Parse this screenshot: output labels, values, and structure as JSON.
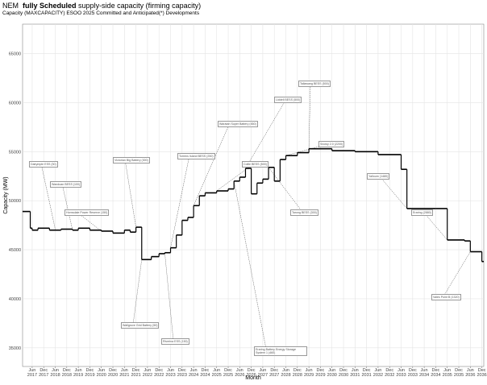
{
  "chart_data": {
    "type": "step",
    "title_prefix": "NEM",
    "title_bold": "fully Scheduled",
    "title_suffix": "supply-side capacity (firming capacity)",
    "subtitle": "Capacity (MAXCAPACITY) ESOO 2025 Committed and Anticipated(*) Developments",
    "x_label": "Month",
    "y_label": "Capacity (MW)",
    "color": "#000000",
    "grid": true,
    "ylim": [
      33100,
      68000
    ],
    "yticks": [
      35000,
      40000,
      45000,
      50000,
      55000,
      60000,
      65000
    ],
    "xlim": [
      "2017-01",
      "2037-01"
    ],
    "xticks": [
      {
        "value": "2017-06",
        "label": "Jun 2017"
      },
      {
        "value": "2017-12",
        "label": "Dec 2017"
      },
      {
        "value": "2018-06",
        "label": "Jun 2018"
      },
      {
        "value": "2018-12",
        "label": "Dec 2018"
      },
      {
        "value": "2019-06",
        "label": "Jun 2019"
      },
      {
        "value": "2019-12",
        "label": "Dec 2019"
      },
      {
        "value": "2020-06",
        "label": "Jun 2020"
      },
      {
        "value": "2020-12",
        "label": "Dec 2020"
      },
      {
        "value": "2021-06",
        "label": "Jun 2021"
      },
      {
        "value": "2021-12",
        "label": "Dec 2021"
      },
      {
        "value": "2022-06",
        "label": "Jun 2022"
      },
      {
        "value": "2022-12",
        "label": "Dec 2022"
      },
      {
        "value": "2023-06",
        "label": "Jun 2023"
      },
      {
        "value": "2023-12",
        "label": "Dec 2023"
      },
      {
        "value": "2024-06",
        "label": "Jun 2024"
      },
      {
        "value": "2024-12",
        "label": "Dec 2024"
      },
      {
        "value": "2025-06",
        "label": "Jun 2025"
      },
      {
        "value": "2025-12",
        "label": "Dec 2025"
      },
      {
        "value": "2026-06",
        "label": "Jun 2026"
      },
      {
        "value": "2026-12",
        "label": "Dec 2026"
      },
      {
        "value": "2027-06",
        "label": "Jun 2027"
      },
      {
        "value": "2027-12",
        "label": "Dec 2027"
      },
      {
        "value": "2028-06",
        "label": "Jun 2028"
      },
      {
        "value": "2028-12",
        "label": "Dec 2028"
      },
      {
        "value": "2029-06",
        "label": "Jun 2029"
      },
      {
        "value": "2029-12",
        "label": "Dec 2029"
      },
      {
        "value": "2030-06",
        "label": "Jun 2030"
      },
      {
        "value": "2030-12",
        "label": "Dec 2030"
      },
      {
        "value": "2031-06",
        "label": "Jun 2031"
      },
      {
        "value": "2031-12",
        "label": "Dec 2031"
      },
      {
        "value": "2032-06",
        "label": "Jun 2032"
      },
      {
        "value": "2032-12",
        "label": "Dec 2032"
      },
      {
        "value": "2033-06",
        "label": "Jun 2033"
      },
      {
        "value": "2033-12",
        "label": "Dec 2033"
      },
      {
        "value": "2034-06",
        "label": "Jun 2034"
      },
      {
        "value": "2034-12",
        "label": "Dec 2034"
      },
      {
        "value": "2035-06",
        "label": "Jun 2035"
      },
      {
        "value": "2035-12",
        "label": "Dec 2035"
      },
      {
        "value": "2036-06",
        "label": "Jun 2036"
      },
      {
        "value": "2036-12",
        "label": "Dec 2036"
      }
    ],
    "x": [
      "2017-01",
      "2017-05",
      "2017-06",
      "2017-09",
      "2018-03",
      "2018-09",
      "2019-03",
      "2019-06",
      "2019-12",
      "2020-06",
      "2020-12",
      "2021-06",
      "2021-09",
      "2021-12",
      "2022-03",
      "2022-08",
      "2022-12",
      "2023-03",
      "2023-06",
      "2023-09",
      "2023-12",
      "2024-03",
      "2024-06",
      "2024-09",
      "2024-12",
      "2025-06",
      "2025-12",
      "2026-03",
      "2026-06",
      "2026-09",
      "2026-12",
      "2027-03",
      "2027-06",
      "2027-09",
      "2027-12",
      "2028-03",
      "2028-06",
      "2028-12",
      "2029-06",
      "2030-06",
      "2031-06",
      "2032-06",
      "2033-06",
      "2033-09",
      "2034-12",
      "2035-06",
      "2036-03",
      "2036-06",
      "2036-12"
    ],
    "values": [
      48900,
      47200,
      47000,
      47200,
      47000,
      47100,
      47000,
      47200,
      47000,
      46900,
      46700,
      47000,
      46800,
      47300,
      44000,
      44300,
      44600,
      44700,
      45200,
      46500,
      48000,
      48300,
      49500,
      50500,
      50800,
      51000,
      51200,
      52000,
      52400,
      53300,
      50700,
      51800,
      52200,
      53400,
      52000,
      54200,
      54600,
      54900,
      55300,
      55100,
      55000,
      54700,
      53200,
      49200,
      49200,
      46000,
      45900,
      44800,
      43800
    ],
    "annotations": [
      {
        "text": "Dalrymple ESS (30)",
        "x": "2018-06",
        "y": 47100
      },
      {
        "text": "Wandoan BESS (100)",
        "x": "2019-03",
        "y": 47000
      },
      {
        "text": "Hornsdale Power Reserve (150)",
        "x": "2020-06",
        "y": 46900
      },
      {
        "text": "Victorian Big Battery (300)",
        "x": "2021-12",
        "y": 47300
      },
      {
        "text": "Wallgrove Grid Battery (50)",
        "x": "2022-03",
        "y": 44000
      },
      {
        "text": "Riverina ESS (150)",
        "x": "2023-03",
        "y": 44700
      },
      {
        "text": "Torrens Island BESS (250)",
        "x": "2023-06",
        "y": 45200
      },
      {
        "text": "Waratah Super Battery (850)",
        "x": "2024-06",
        "y": 49500
      },
      {
        "text": "Collie BESS (500)",
        "x": "2025-06",
        "y": 51000
      },
      {
        "text": "Eraring Battery Energy Storage System 1 (460)",
        "x": "2026-03",
        "y": 52000
      },
      {
        "text": "Liddell BESS (500)",
        "x": "2026-09",
        "y": 53300
      },
      {
        "text": "Tarong BESS (300)",
        "x": "2027-09",
        "y": 53400
      },
      {
        "text": "Snowy 2.0 (2200)",
        "x": "2028-06",
        "y": 54600
      },
      {
        "text": "Tallawang BESS (500)",
        "x": "2029-06",
        "y": 55300
      },
      {
        "text": "Yallourn (1480)",
        "x": "2033-09",
        "y": 49200
      },
      {
        "text": "Eraring (2880)",
        "x": "2035-06",
        "y": 46000
      },
      {
        "text": "Vales Point B (1320)",
        "x": "2036-06",
        "y": 44800
      }
    ]
  }
}
